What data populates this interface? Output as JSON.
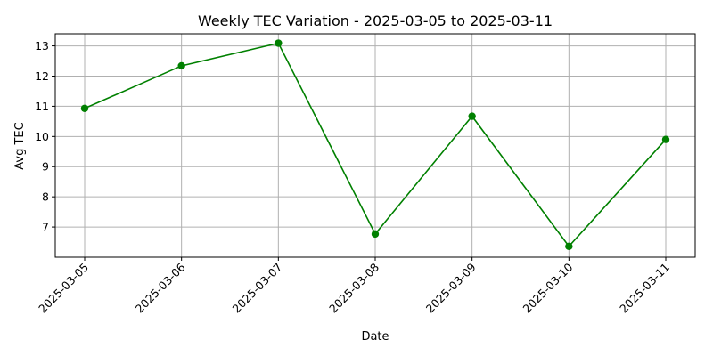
{
  "chart_data": {
    "type": "line",
    "title": "Weekly TEC Variation - 2025-03-05 to 2025-03-11",
    "xlabel": "Date",
    "ylabel": "Avg TEC",
    "x": [
      "2025-03-05",
      "2025-03-06",
      "2025-03-07",
      "2025-03-08",
      "2025-03-09",
      "2025-03-10",
      "2025-03-11"
    ],
    "series": [
      {
        "values": [
          10.93,
          12.34,
          13.09,
          6.77,
          10.67,
          6.36,
          9.9
        ],
        "color": "#008000",
        "marker": "circle"
      }
    ],
    "yticks": [
      7,
      8,
      9,
      10,
      11,
      12,
      13
    ],
    "ylim": [
      6.0,
      13.4
    ],
    "grid": true
  }
}
